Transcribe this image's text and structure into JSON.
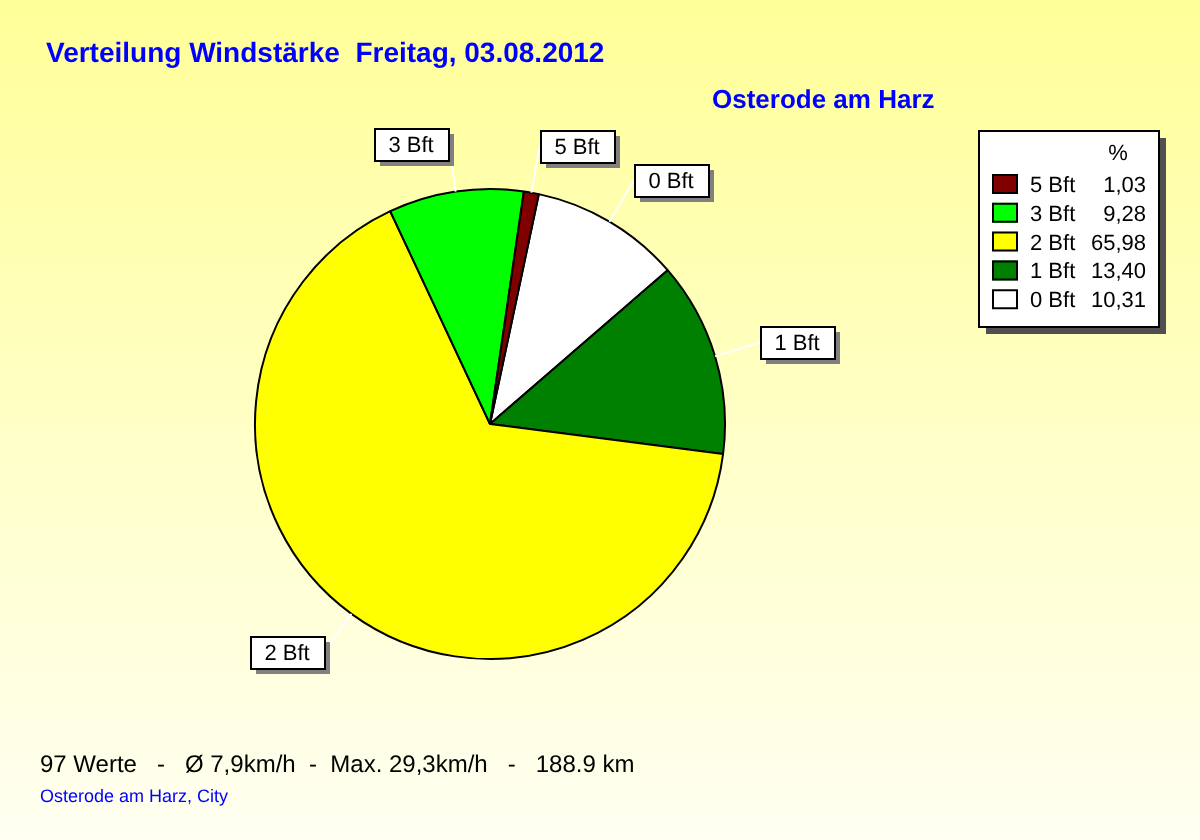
{
  "chart_data": {
    "type": "pie",
    "title": "Verteilung Windstärke  Freitag, 03.08.2012",
    "subtitle": "Osterode am Harz",
    "categories": [
      "5 Bft",
      "3 Bft",
      "2 Bft",
      "1 Bft",
      "0 Bft"
    ],
    "values": [
      1.03,
      9.28,
      65.98,
      13.4,
      10.31
    ],
    "value_labels": [
      "1,03",
      "9,28",
      "65,98",
      "13,40",
      "10,31"
    ],
    "colors": [
      "#800000",
      "#00ff00",
      "#ffff00",
      "#008000",
      "#ffffff"
    ],
    "legend": "top right",
    "legend_title": "%",
    "annotations": [
      "97 Werte   -   Ø 7,9km/h  -  Max. 29,3km/h   -   188.9 km",
      "Osterode am Harz, City"
    ]
  }
}
